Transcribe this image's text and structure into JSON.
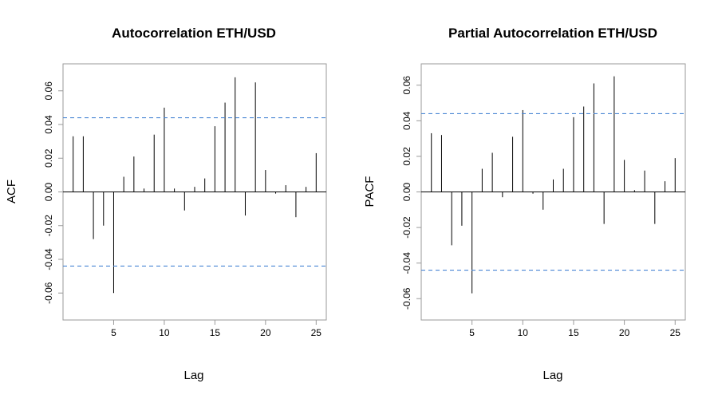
{
  "chart_data": [
    {
      "type": "bar",
      "title": "Autocorrelation ETH/USD",
      "xlabel": "Lag",
      "ylabel": "ACF",
      "x_ticks": [
        5,
        10,
        15,
        20,
        25
      ],
      "y_ticks": [
        -0.06,
        -0.04,
        -0.02,
        0.0,
        0.02,
        0.04,
        0.06
      ],
      "y_tick_labels": [
        "-0.06",
        "-0.04",
        "-0.02",
        "0.00",
        "0.02",
        "0.04",
        "0.06"
      ],
      "xlim": [
        0,
        26
      ],
      "ylim": [
        -0.076,
        0.076
      ],
      "confidence_bound": 0.044,
      "ci_color": "#4a86d4",
      "lags": [
        1,
        2,
        3,
        4,
        5,
        6,
        7,
        8,
        9,
        10,
        11,
        12,
        13,
        14,
        15,
        16,
        17,
        18,
        19,
        20,
        21,
        22,
        23,
        24,
        25
      ],
      "values": [
        0.033,
        0.033,
        -0.028,
        -0.02,
        -0.06,
        0.009,
        0.021,
        0.002,
        0.034,
        0.05,
        0.002,
        -0.011,
        0.003,
        0.008,
        0.039,
        0.053,
        0.068,
        -0.014,
        0.065,
        0.013,
        -0.001,
        0.004,
        -0.015,
        0.003,
        0.023
      ]
    },
    {
      "type": "bar",
      "title": "Partial Autocorrelation ETH/USD",
      "xlabel": "Lag",
      "ylabel": "PACF",
      "x_ticks": [
        5,
        10,
        15,
        20,
        25
      ],
      "y_ticks": [
        -0.06,
        -0.04,
        -0.02,
        0.0,
        0.02,
        0.04,
        0.06
      ],
      "y_tick_labels": [
        "-0.06",
        "-0.04",
        "-0.02",
        "0.00",
        "0.02",
        "0.04",
        "0.06"
      ],
      "xlim": [
        0,
        26
      ],
      "ylim": [
        -0.072,
        0.072
      ],
      "confidence_bound": 0.044,
      "ci_color": "#4a86d4",
      "lags": [
        1,
        2,
        3,
        4,
        5,
        6,
        7,
        8,
        9,
        10,
        11,
        12,
        13,
        14,
        15,
        16,
        17,
        18,
        19,
        20,
        21,
        22,
        23,
        24,
        25
      ],
      "values": [
        0.033,
        0.032,
        -0.03,
        -0.019,
        -0.057,
        0.013,
        0.022,
        -0.003,
        0.031,
        0.046,
        -0.001,
        -0.01,
        0.007,
        0.013,
        0.042,
        0.048,
        0.061,
        -0.018,
        0.065,
        0.018,
        0.001,
        0.012,
        -0.018,
        0.006,
        0.019
      ]
    }
  ]
}
